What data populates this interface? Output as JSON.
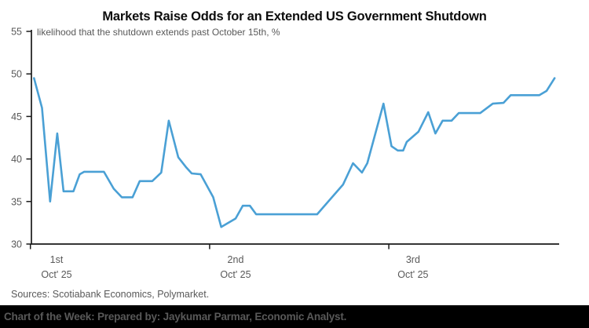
{
  "sources_note": "Sources: Scotiabank Economics, Polymarket.",
  "footer": {
    "text": "Chart of the Week: Prepared by: Jaykumar Parmar, Economic Analyst."
  },
  "colors": {
    "line": "#4aa0d5",
    "axis": "#1a1a1a",
    "tick_label": "#595959",
    "title_text": "#0d0d0d",
    "subtitle_text": "#595959",
    "footer_bg": "#000000",
    "footer_text": "#595959",
    "background": "#ffffff"
  },
  "chart_data": {
    "type": "line",
    "title": "Markets Raise Odds for an Extended US Government Shutdown",
    "subtitle": "likelihood that the shutdown extends past October 15th, %",
    "xlabel": "",
    "ylabel": "%",
    "ylim": [
      30,
      55
    ],
    "yticks": [
      30,
      35,
      40,
      45,
      50,
      55
    ],
    "grid": false,
    "legend": "none",
    "x_unit": "days since Oct 1, 2025 00:00",
    "xlim_days": [
      0,
      2.95
    ],
    "xticks_days": [
      0,
      1,
      2
    ],
    "xlabels": [
      {
        "day": 0.146,
        "line1": "1st",
        "line2": "Oct' 25"
      },
      {
        "day": 1.145,
        "line1": "2nd",
        "line2": "Oct' 25"
      },
      {
        "day": 2.135,
        "line1": "3rd",
        "line2": "Oct' 25"
      }
    ],
    "series": [
      {
        "name": "likelihood shutdown extends past October 15th (%)",
        "points": [
          [
            0.02,
            49.5
          ],
          [
            0.065,
            46.0
          ],
          [
            0.11,
            35.0
          ],
          [
            0.15,
            43.0
          ],
          [
            0.185,
            36.2
          ],
          [
            0.24,
            36.2
          ],
          [
            0.275,
            38.2
          ],
          [
            0.3,
            38.5
          ],
          [
            0.41,
            38.5
          ],
          [
            0.465,
            36.5
          ],
          [
            0.51,
            35.5
          ],
          [
            0.57,
            35.5
          ],
          [
            0.61,
            37.4
          ],
          [
            0.68,
            37.4
          ],
          [
            0.73,
            38.4
          ],
          [
            0.772,
            44.5
          ],
          [
            0.825,
            40.2
          ],
          [
            0.87,
            39.0
          ],
          [
            0.9,
            38.3
          ],
          [
            0.95,
            38.2
          ],
          [
            1.02,
            35.5
          ],
          [
            1.065,
            32.0
          ],
          [
            1.145,
            33.0
          ],
          [
            1.185,
            34.5
          ],
          [
            1.225,
            34.5
          ],
          [
            1.26,
            33.5
          ],
          [
            1.6,
            33.5
          ],
          [
            1.745,
            37.0
          ],
          [
            1.8,
            39.5
          ],
          [
            1.85,
            38.4
          ],
          [
            1.88,
            39.5
          ],
          [
            1.97,
            46.5
          ],
          [
            2.015,
            41.5
          ],
          [
            2.05,
            41.0
          ],
          [
            2.08,
            41.0
          ],
          [
            2.1,
            42.0
          ],
          [
            2.165,
            43.2
          ],
          [
            2.22,
            45.5
          ],
          [
            2.26,
            43.0
          ],
          [
            2.3,
            44.5
          ],
          [
            2.35,
            44.5
          ],
          [
            2.39,
            45.4
          ],
          [
            2.51,
            45.4
          ],
          [
            2.58,
            46.5
          ],
          [
            2.64,
            46.6
          ],
          [
            2.68,
            47.5
          ],
          [
            2.84,
            47.5
          ],
          [
            2.88,
            48.0
          ],
          [
            2.925,
            49.5
          ]
        ]
      }
    ]
  }
}
